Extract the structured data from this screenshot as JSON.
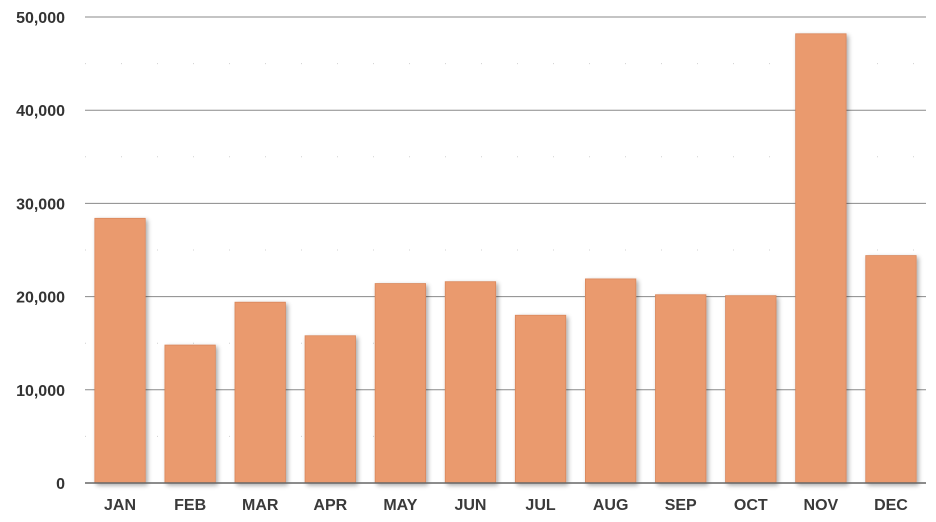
{
  "chart_data": {
    "type": "bar",
    "title": "",
    "xlabel": "",
    "ylabel": "",
    "categories": [
      "JAN",
      "FEB",
      "MAR",
      "APR",
      "MAY",
      "JUN",
      "JUL",
      "AUG",
      "SEP",
      "OCT",
      "NOV",
      "DEC"
    ],
    "values": [
      28400,
      14800,
      19400,
      15800,
      21400,
      21600,
      18000,
      21900,
      20200,
      20100,
      48200,
      24400
    ],
    "ylim": [
      0,
      50000
    ],
    "yticks": [
      0,
      10000,
      20000,
      30000,
      40000,
      50000
    ],
    "ytick_labels": [
      "0",
      "10,000",
      "20,000",
      "30,000",
      "40,000",
      "50,000"
    ],
    "grid": true,
    "legend": "none",
    "colors": {
      "bar": "#EA9A6E",
      "bar_edge": "#D9875B",
      "grid": "#8A8A8A"
    }
  }
}
